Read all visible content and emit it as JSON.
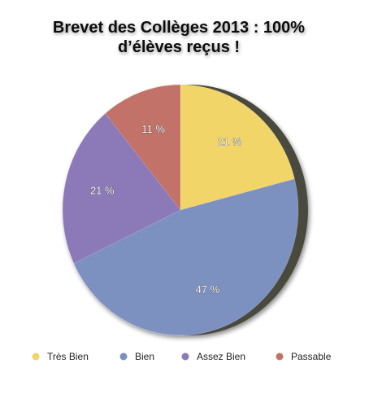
{
  "chart_data": {
    "type": "pie",
    "title": [
      "Brevet des Collèges 2013 : 100%",
      "d’élèves reçus !"
    ],
    "categories": [
      "Très Bien",
      "Bien",
      "Assez Bien",
      "Passable"
    ],
    "values": [
      21,
      47,
      21,
      11
    ],
    "value_labels": [
      "21 %",
      "47 %",
      "21 %",
      "11 %"
    ],
    "colors": [
      "#f1d568",
      "#7d91c0",
      "#8b79b8",
      "#c27267"
    ],
    "legend": "bottom"
  }
}
